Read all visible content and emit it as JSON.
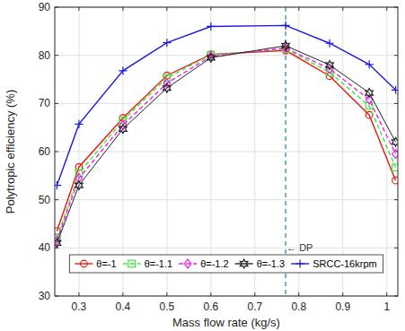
{
  "chart_data": {
    "type": "line",
    "x_label": "Mass flow rate (kg/s)",
    "y_label": "Polytropic efficiency (%)",
    "x": [
      0.25,
      0.3,
      0.4,
      0.5,
      0.6,
      0.77,
      0.87,
      0.96,
      1.02
    ],
    "series": [
      {
        "name": "θ=-1",
        "color": "#e8190f",
        "marker": "circle",
        "line_style": "solid",
        "values": [
          43.5,
          56.8,
          67.0,
          75.8,
          80.2,
          81.0,
          75.7,
          67.6,
          54.0
        ]
      },
      {
        "name": "θ=-1.1",
        "color": "#3ee83e",
        "marker": "square",
        "line_style": "dashed",
        "values": [
          42.0,
          55.5,
          66.5,
          75.3,
          80.1,
          81.3,
          76.5,
          69.5,
          56.7
        ]
      },
      {
        "name": "θ=-1.2",
        "color": "#f020f0",
        "marker": "diamond",
        "line_style": "dashed",
        "values": [
          41.5,
          54.5,
          65.5,
          74.2,
          79.8,
          81.5,
          77.2,
          70.8,
          59.5
        ]
      },
      {
        "name": "θ=-1.3",
        "color": "#222222",
        "marker": "hexagram",
        "line_style": "solid",
        "values": [
          41.0,
          53.0,
          64.7,
          73.2,
          79.5,
          82.0,
          78.0,
          72.2,
          62.0
        ]
      },
      {
        "name": "SRCC-16krpm",
        "color": "#1a1adc",
        "marker": "plus",
        "line_style": "solid",
        "values": [
          53.0,
          65.7,
          76.8,
          82.6,
          86.0,
          86.2,
          82.5,
          78.1,
          72.8
        ]
      }
    ],
    "annotations": [
      {
        "text": "← DP",
        "x": 0.77,
        "y": 40
      }
    ],
    "xlim": [
      0.245,
      1.025
    ],
    "ylim": [
      30,
      90
    ],
    "xticks": [
      0.3,
      0.4,
      0.5,
      0.6,
      0.7,
      0.8,
      0.9,
      1
    ],
    "yticks": [
      30,
      40,
      50,
      60,
      70,
      80,
      90
    ],
    "grid": true,
    "legend": "south"
  }
}
